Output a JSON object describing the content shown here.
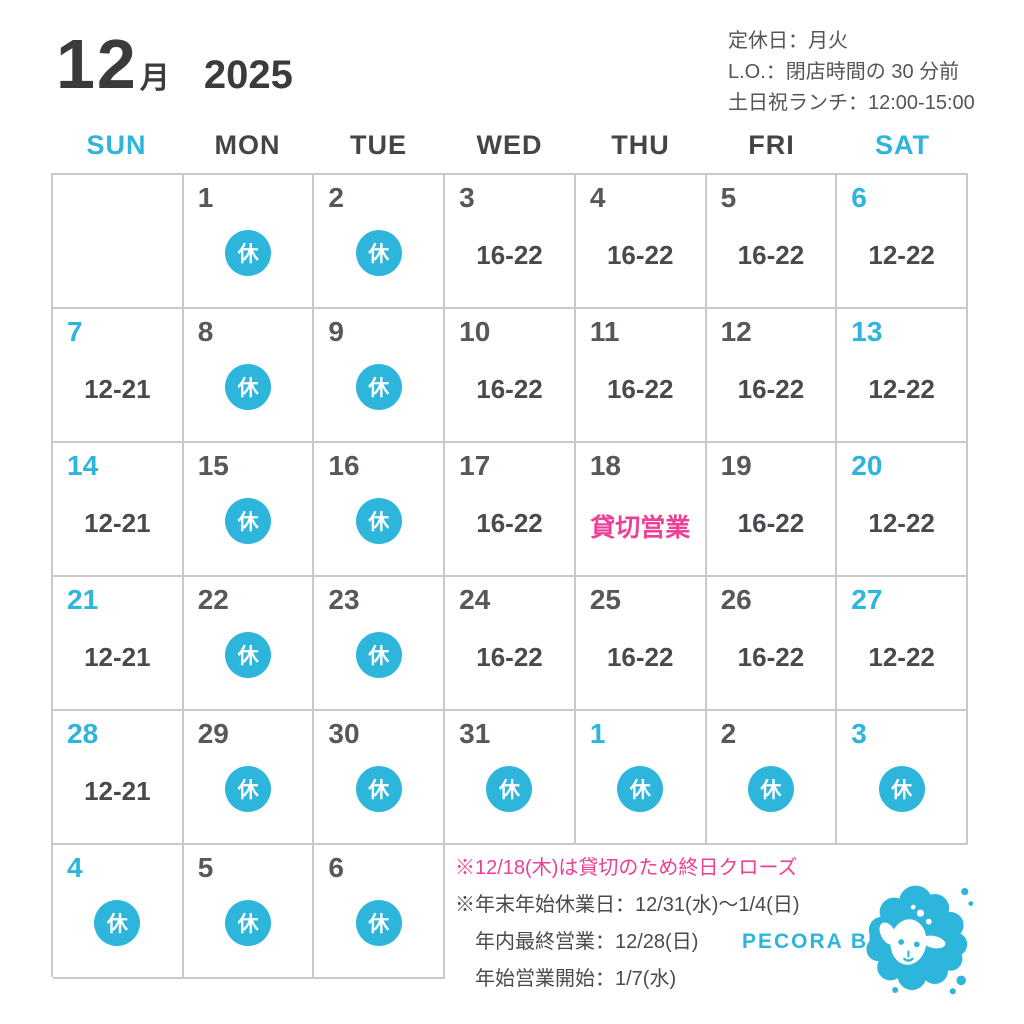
{
  "title": {
    "month": "12",
    "month_unit": "月",
    "year": "2025"
  },
  "info": {
    "line1": "定休日：月火",
    "line2": "L.O.：閉店時間の 30 分前",
    "line3": "土日祝ランチ：12:00-15:00"
  },
  "calendar": {
    "day_headers": [
      {
        "label": "SUN",
        "accent": true
      },
      {
        "label": "MON",
        "accent": false
      },
      {
        "label": "TUE",
        "accent": false
      },
      {
        "label": "WED",
        "accent": false
      },
      {
        "label": "THU",
        "accent": false
      },
      {
        "label": "FRI",
        "accent": false
      },
      {
        "label": "SAT",
        "accent": true
      }
    ],
    "closed_label": "休",
    "weeks": [
      [
        {
          "day": "",
          "status": "empty"
        },
        {
          "day": "1",
          "status": "closed"
        },
        {
          "day": "2",
          "status": "closed"
        },
        {
          "day": "3",
          "status": "hours",
          "hours": "16-22"
        },
        {
          "day": "4",
          "status": "hours",
          "hours": "16-22"
        },
        {
          "day": "5",
          "status": "hours",
          "hours": "16-22"
        },
        {
          "day": "6",
          "status": "hours",
          "hours": "12-22",
          "accent": true
        }
      ],
      [
        {
          "day": "7",
          "status": "hours",
          "hours": "12-21",
          "accent": true
        },
        {
          "day": "8",
          "status": "closed"
        },
        {
          "day": "9",
          "status": "closed"
        },
        {
          "day": "10",
          "status": "hours",
          "hours": "16-22"
        },
        {
          "day": "11",
          "status": "hours",
          "hours": "16-22"
        },
        {
          "day": "12",
          "status": "hours",
          "hours": "16-22"
        },
        {
          "day": "13",
          "status": "hours",
          "hours": "12-22",
          "accent": true
        }
      ],
      [
        {
          "day": "14",
          "status": "hours",
          "hours": "12-21",
          "accent": true
        },
        {
          "day": "15",
          "status": "closed"
        },
        {
          "day": "16",
          "status": "closed"
        },
        {
          "day": "17",
          "status": "hours",
          "hours": "16-22"
        },
        {
          "day": "18",
          "status": "private",
          "label": "貸切営業"
        },
        {
          "day": "19",
          "status": "hours",
          "hours": "16-22"
        },
        {
          "day": "20",
          "status": "hours",
          "hours": "12-22",
          "accent": true
        }
      ],
      [
        {
          "day": "21",
          "status": "hours",
          "hours": "12-21",
          "accent": true
        },
        {
          "day": "22",
          "status": "closed"
        },
        {
          "day": "23",
          "status": "closed"
        },
        {
          "day": "24",
          "status": "hours",
          "hours": "16-22"
        },
        {
          "day": "25",
          "status": "hours",
          "hours": "16-22"
        },
        {
          "day": "26",
          "status": "hours",
          "hours": "16-22"
        },
        {
          "day": "27",
          "status": "hours",
          "hours": "12-22",
          "accent": true
        }
      ],
      [
        {
          "day": "28",
          "status": "hours",
          "hours": "12-21",
          "accent": true
        },
        {
          "day": "29",
          "status": "closed"
        },
        {
          "day": "30",
          "status": "closed"
        },
        {
          "day": "31",
          "status": "closed"
        },
        {
          "day": "1",
          "status": "closed",
          "accent": true
        },
        {
          "day": "2",
          "status": "closed"
        },
        {
          "day": "3",
          "status": "closed",
          "accent": true
        }
      ],
      [
        {
          "day": "4",
          "status": "closed",
          "accent": true
        },
        {
          "day": "5",
          "status": "closed"
        },
        {
          "day": "6",
          "status": "closed"
        },
        {
          "day": "",
          "status": "blank"
        },
        {
          "day": "",
          "status": "blank"
        },
        {
          "day": "",
          "status": "blank"
        },
        {
          "day": "",
          "status": "blank"
        }
      ]
    ]
  },
  "notes": {
    "line1": "※12/18(木)は貸切のため終日クローズ",
    "line2": "※年末年始休業日：12/31(水)〜1/4(日)",
    "line3": "年内最終営業：12/28(日)",
    "line4": "年始営業開始：1/7(水)"
  },
  "brand": {
    "name": "PECORA BEER",
    "logo": "sheep-logo"
  },
  "colors": {
    "accent": "#2db5dc",
    "pink": "#ee3e96",
    "day_text": "#55585c",
    "border": "#c9c9c9"
  }
}
